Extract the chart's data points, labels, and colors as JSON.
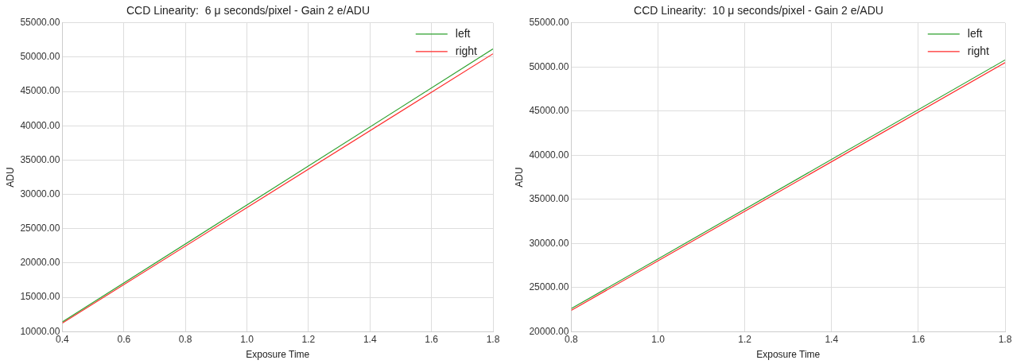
{
  "chart_data": [
    {
      "type": "line",
      "title": "CCD Linearity:  6 μ seconds/pixel - Gain 2 e/ADU",
      "xlabel": "Exposure Time",
      "ylabel": "ADU",
      "x": [
        0.4,
        1.8
      ],
      "series": [
        {
          "name": "left",
          "color": "#2ca02c",
          "values": [
            11400,
            51200
          ]
        },
        {
          "name": "right",
          "color": "#ff2a2a",
          "values": [
            11250,
            50500
          ]
        }
      ],
      "xlim": [
        0.4,
        1.8
      ],
      "xticks": [
        {
          "value": 0.4,
          "label": "0.4"
        },
        {
          "value": 0.6,
          "label": "0.6"
        },
        {
          "value": 0.8,
          "label": "0.8"
        },
        {
          "value": 1.0,
          "label": "1.0"
        },
        {
          "value": 1.2,
          "label": "1.2"
        },
        {
          "value": 1.4,
          "label": "1.4"
        },
        {
          "value": 1.6,
          "label": "1.6"
        },
        {
          "value": 1.8,
          "label": "1.8"
        }
      ],
      "ylim": [
        10000,
        55000
      ],
      "yticks": [
        {
          "value": 10000,
          "label": "10000.00"
        },
        {
          "value": 15000,
          "label": "15000.00"
        },
        {
          "value": 20000,
          "label": "20000.00"
        },
        {
          "value": 25000,
          "label": "25000.00"
        },
        {
          "value": 30000,
          "label": "30000.00"
        },
        {
          "value": 35000,
          "label": "35000.00"
        },
        {
          "value": 40000,
          "label": "40000.00"
        },
        {
          "value": 45000,
          "label": "45000.00"
        },
        {
          "value": 50000,
          "label": "50000.00"
        },
        {
          "value": 55000,
          "label": "55000.00"
        }
      ],
      "grid": true,
      "legend": "top right",
      "marker": "none",
      "line_style": "solid"
    },
    {
      "type": "line",
      "title": "CCD Linearity:  10 μ seconds/pixel - Gain 2 e/ADU",
      "xlabel": "Exposure Time",
      "ylabel": "ADU",
      "x": [
        0.8,
        1.8
      ],
      "series": [
        {
          "name": "left",
          "color": "#2ca02c",
          "values": [
            22600,
            50800
          ]
        },
        {
          "name": "right",
          "color": "#ff2a2a",
          "values": [
            22400,
            50500
          ]
        }
      ],
      "xlim": [
        0.8,
        1.8
      ],
      "xticks": [
        {
          "value": 0.8,
          "label": "0.8"
        },
        {
          "value": 1.0,
          "label": "1.0"
        },
        {
          "value": 1.2,
          "label": "1.2"
        },
        {
          "value": 1.4,
          "label": "1.4"
        },
        {
          "value": 1.6,
          "label": "1.6"
        },
        {
          "value": 1.8,
          "label": "1.8"
        }
      ],
      "ylim": [
        20000,
        55000
      ],
      "yticks": [
        {
          "value": 20000,
          "label": "20000.00"
        },
        {
          "value": 25000,
          "label": "25000.00"
        },
        {
          "value": 30000,
          "label": "30000.00"
        },
        {
          "value": 35000,
          "label": "35000.00"
        },
        {
          "value": 40000,
          "label": "40000.00"
        },
        {
          "value": 45000,
          "label": "45000.00"
        },
        {
          "value": 50000,
          "label": "50000.00"
        },
        {
          "value": 55000,
          "label": "55000.00"
        }
      ],
      "grid": true,
      "legend": "top right",
      "marker": "none",
      "line_style": "solid"
    }
  ]
}
